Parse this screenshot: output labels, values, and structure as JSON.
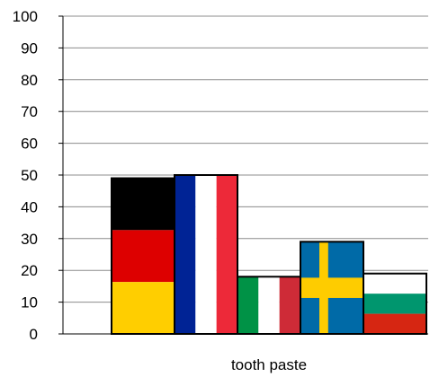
{
  "chart_data": {
    "type": "bar",
    "categories": [
      "tooth paste"
    ],
    "series": [
      {
        "flag": "germany",
        "values": [
          49
        ],
        "bands": "horizontal",
        "colors": [
          "#000000",
          "#dd0000",
          "#ffce00"
        ]
      },
      {
        "flag": "france",
        "values": [
          50
        ],
        "bands": "vertical",
        "colors": [
          "#002395",
          "#ffffff",
          "#ed2939"
        ]
      },
      {
        "flag": "italy",
        "values": [
          18
        ],
        "bands": "vertical",
        "colors": [
          "#009246",
          "#ffffff",
          "#ce2b37"
        ]
      },
      {
        "flag": "sweden",
        "values": [
          29
        ],
        "bands": "cross",
        "colors": [
          "#006aa7",
          "#fecc00"
        ]
      },
      {
        "flag": "bulgaria",
        "values": [
          19
        ],
        "bands": "horizontal",
        "colors": [
          "#ffffff",
          "#00966e",
          "#d62612"
        ]
      }
    ],
    "yticks": [
      "0",
      "10",
      "20",
      "30",
      "40",
      "50",
      "60",
      "70",
      "80",
      "90",
      "100"
    ],
    "ylim": [
      0,
      100
    ],
    "title": "",
    "xlabel": "",
    "ylabel": "",
    "grid": true,
    "legend": "none"
  }
}
